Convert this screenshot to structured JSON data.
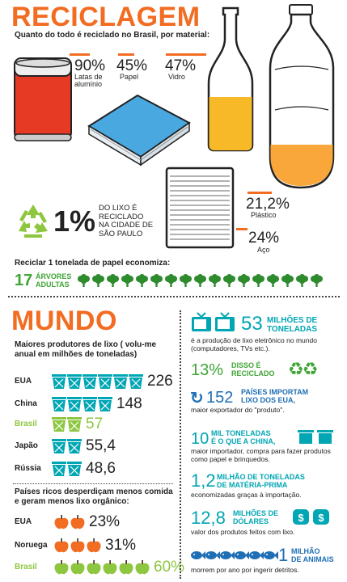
{
  "header": {
    "title": "RECICLAGEM",
    "subtitle": "Quanto do todo é reciclado no Brasil, por material:"
  },
  "materials": [
    {
      "value": "90%",
      "label": "Latas de alumínio"
    },
    {
      "value": "45%",
      "label": "Papel"
    },
    {
      "value": "47%",
      "label": "Vidro"
    },
    {
      "value": "21,2%",
      "label": "Plástico"
    },
    {
      "value": "24%",
      "label": "Aço"
    }
  ],
  "sp": {
    "value": "1%",
    "line1": "DO LIXO É",
    "line2": "RECICLADO",
    "line3": "NA CIDADE DE",
    "line4": "SÃO PAULO"
  },
  "paper": {
    "title": "Reciclar 1 tonelada de papel economiza:",
    "value": "17",
    "line1": "ÁRVORES",
    "line2": "ADULTAS"
  },
  "world": {
    "title": "MUNDO",
    "producers_title": "Maiores produtores de lixo ( volu-me anual em milhões de toneladas)",
    "producers": [
      {
        "country": "EUA",
        "value": "226",
        "bins": 6,
        "color": "#00a6b4"
      },
      {
        "country": "China",
        "value": "148",
        "bins": 4,
        "color": "#00a6b4"
      },
      {
        "country": "Brasil",
        "value": "57",
        "bins": 2,
        "color": "#8dc63f"
      },
      {
        "country": "Japão",
        "value": "55,4",
        "bins": 2,
        "color": "#00a6b4"
      },
      {
        "country": "Rússia",
        "value": "48,6",
        "bins": 2,
        "color": "#00a6b4"
      }
    ],
    "organic_title": "Países ricos desperdiçam menos comida e geram menos lixo orgânico:",
    "organic": [
      {
        "country": "EUA",
        "value": "23%",
        "fruits": 2,
        "color": "#f26c21"
      },
      {
        "country": "Noruega",
        "value": "31%",
        "fruits": 3,
        "color": "#f26c21"
      },
      {
        "country": "Brasil",
        "value": "60%",
        "fruits": 6,
        "color": "#8dc63f"
      }
    ]
  },
  "facts": {
    "ewaste_value": "53",
    "ewaste_title1": "MILHÕES DE",
    "ewaste_title2": "TONELADAS",
    "ewaste_text": "é a produção de lixo eletrônico no mundo (computadores, TVs etc.).",
    "recycled_value": "13%",
    "recycled_1": "DISSO É",
    "recycled_2": "RECICLADO",
    "import_value": "152",
    "import_1": "PAÍSES IMPORTAM",
    "import_2": "LIXO DOS EUA,",
    "import_text": "maior exportador do \"produto\".",
    "china_value": "10",
    "china_1": "MIL TONELADAS",
    "china_2": "É O QUE A CHINA,",
    "china_text": "maior importador, compra para fazer produtos como papel e brinquedos.",
    "raw_value": "1,2",
    "raw_1": "MILHÃO DE TONELADAS",
    "raw_2": "DE MATÉRIA-PRIMA",
    "raw_text": "economizadas graças à importação.",
    "dollars_value": "12,8",
    "dollars_1": "MILHÕES DE",
    "dollars_2": "DÓLARES",
    "dollars_text": "valor dos produtos feitos com lixo.",
    "animals_value": "1",
    "animals_1": "MILHÃO",
    "animals_2": "DE ANIMAIS",
    "animals_text": "morrem por ano por ingerir detritos."
  }
}
